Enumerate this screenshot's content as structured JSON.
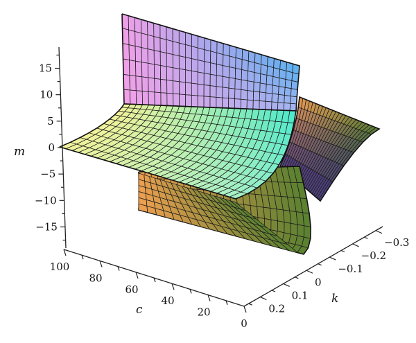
{
  "chart_data": {
    "type": "surface3d",
    "axes": {
      "m": {
        "label": "m",
        "ticks": [
          "15",
          "10",
          "5",
          "0",
          "−5",
          "−10",
          "−15"
        ],
        "tick_values": [
          15,
          10,
          5,
          0,
          -5,
          -10,
          -15
        ],
        "range": [
          -19,
          19
        ]
      },
      "c": {
        "label": "c",
        "ticks": [
          "100",
          "80",
          "60",
          "40",
          "20",
          "0"
        ],
        "tick_values": [
          100,
          80,
          60,
          40,
          20,
          0
        ],
        "range": [
          0,
          100
        ]
      },
      "k": {
        "label": "k",
        "ticks": [
          "−0.3",
          "−0.2",
          "−0.1",
          "0",
          "0.1",
          "0.2"
        ],
        "tick_values": [
          -0.3,
          -0.2,
          -0.1,
          0,
          0.1,
          0.2
        ],
        "range": [
          -0.33,
          0.27
        ]
      }
    },
    "surface": {
      "mesh_rows": 10,
      "mesh_cols": 28,
      "colormap": [
        "#f0a0e8",
        "#a8b4f0",
        "#58b0f0",
        "#f2f29a",
        "#a8f0c8",
        "#48e8cc",
        "#f0a050",
        "#588030",
        "#4a3a80"
      ],
      "pole": "k = 0",
      "pole_m_approx": "m ≈ c / (2k)"
    }
  }
}
